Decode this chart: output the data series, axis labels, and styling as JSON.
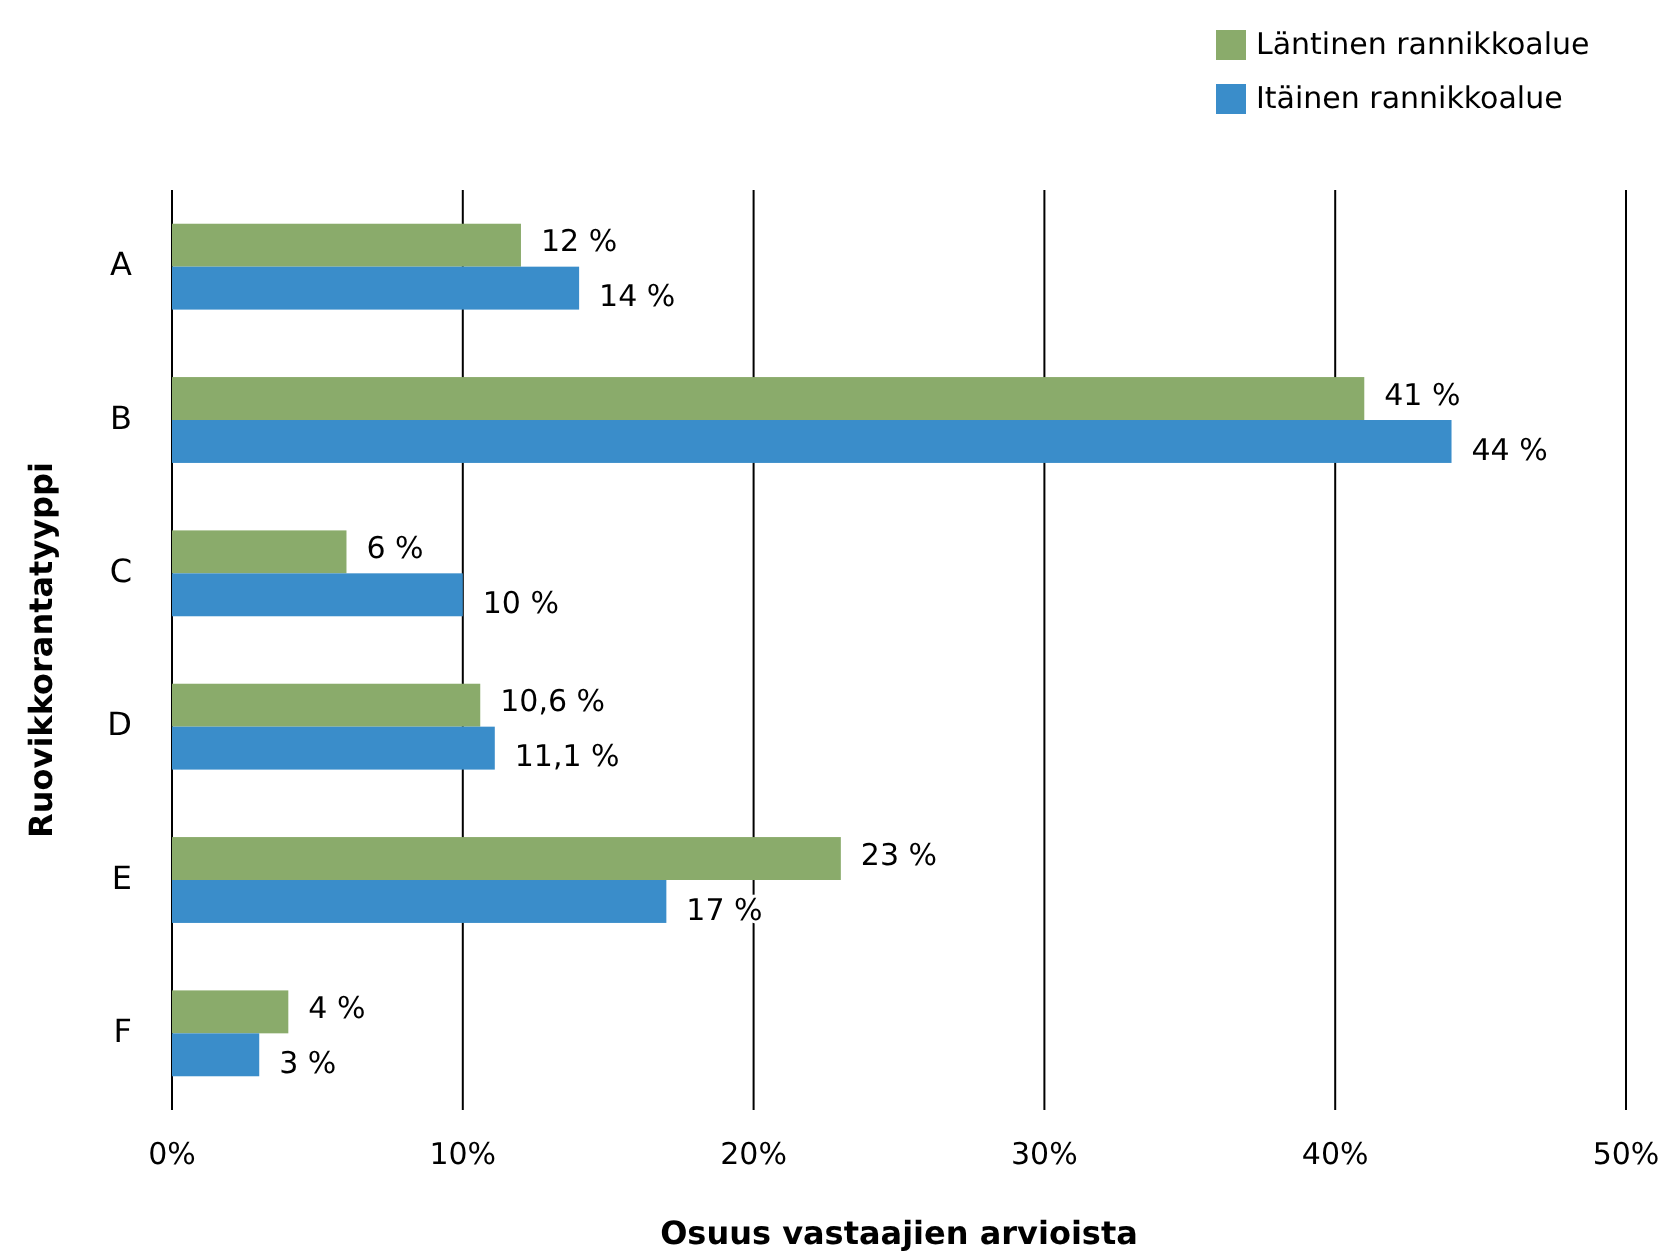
{
  "chart_data": {
    "type": "bar",
    "orientation": "horizontal",
    "xlabel": "Osuus vastaajien arvioista",
    "ylabel": "Ruovikkorantatyyppi",
    "categories": [
      "A",
      "B",
      "C",
      "D",
      "E",
      "F"
    ],
    "series": [
      {
        "name": "Läntinen rannikkoalue",
        "color": "#8aab6b",
        "values": [
          12,
          41,
          6,
          10.6,
          23,
          4
        ],
        "value_labels": [
          "12 %",
          "41 %",
          "6 %",
          "10,6 %",
          "23 %",
          "4 %"
        ]
      },
      {
        "name": "Itäinen rannikkoalue",
        "color": "#3a8dca",
        "values": [
          14,
          44,
          10,
          11.1,
          17,
          3
        ],
        "value_labels": [
          "14 %",
          "44 %",
          "10 %",
          "11,1 %",
          "17 %",
          "3 %"
        ]
      }
    ],
    "xlim": [
      0,
      50
    ],
    "xticks": [
      {
        "value": 0,
        "label": "0%"
      },
      {
        "value": 10,
        "label": "10%"
      },
      {
        "value": 20,
        "label": "20%"
      },
      {
        "value": 30,
        "label": "30%"
      },
      {
        "value": 40,
        "label": "40%"
      },
      {
        "value": 50,
        "label": "50%"
      }
    ],
    "grid": "x",
    "legend": "top right"
  }
}
